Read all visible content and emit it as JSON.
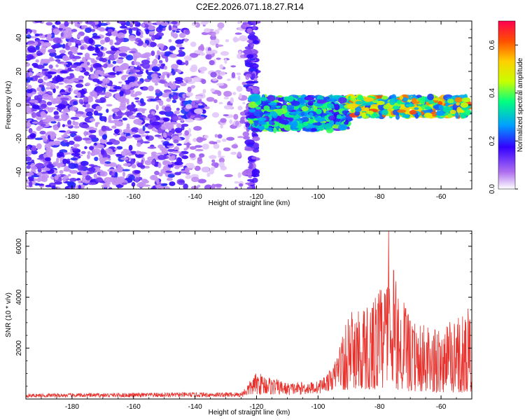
{
  "title": "C2E2.2026.071.18.27.R14",
  "chart_data": [
    {
      "type": "heatmap",
      "name": "spectrogram",
      "xlabel": "Height of straight line (km)",
      "ylabel": "Frequency (Hz)",
      "xlim": [
        -195,
        -50
      ],
      "ylim": [
        -50,
        50
      ],
      "xticks": [
        -180,
        -160,
        -140,
        -120,
        -100,
        -80,
        -60
      ],
      "yticks": [
        -40,
        -20,
        0,
        20,
        40
      ],
      "colorbar": {
        "label": "Normalized spectral amplitude",
        "range": [
          0.0,
          0.7
        ],
        "ticks": [
          0.0,
          0.2,
          0.4,
          0.6
        ],
        "tick_labels": [
          "0.0",
          "0.2",
          "0.4",
          "0.6"
        ]
      },
      "regions": [
        {
          "x_range": [
            -195,
            -143
          ],
          "y_range": [
            -50,
            50
          ],
          "level": 0.12,
          "pattern": "broadband noise"
        },
        {
          "x_range": [
            -143,
            -137
          ],
          "y_range": [
            -8,
            2
          ],
          "level": 0.16,
          "pattern": "signal band"
        },
        {
          "x_range": [
            -143,
            -123
          ],
          "y_range": [
            -50,
            50
          ],
          "level": 0.06,
          "pattern": "sparse noise"
        },
        {
          "x_range": [
            -123,
            -120
          ],
          "y_range": [
            -50,
            50
          ],
          "level": 0.14,
          "pattern": "edge"
        },
        {
          "x_range": [
            -122,
            -90
          ],
          "y_range": [
            -15,
            5
          ],
          "level": 0.3,
          "pattern": "signal band"
        },
        {
          "x_range": [
            -90,
            -51
          ],
          "y_range": [
            -7,
            5
          ],
          "level": 0.45,
          "pattern": "signal band"
        }
      ]
    },
    {
      "type": "line",
      "name": "snr",
      "xlabel": "Height of straight line (km)",
      "ylabel": "SNR (10 * v/v)",
      "xlim": [
        -195,
        -50
      ],
      "ylim": [
        0,
        6600
      ],
      "xticks": [
        -180,
        -160,
        -140,
        -120,
        -100,
        -80,
        -60
      ],
      "yticks": [
        2000,
        4000,
        6000
      ],
      "color": "#e8322d",
      "envelope": [
        {
          "x": -195,
          "base": 150,
          "amp": 150
        },
        {
          "x": -125,
          "base": 180,
          "amp": 200
        },
        {
          "x": -120,
          "base": 400,
          "amp": 900
        },
        {
          "x": -110,
          "base": 350,
          "amp": 500
        },
        {
          "x": -100,
          "base": 500,
          "amp": 500
        },
        {
          "x": -95,
          "base": 900,
          "amp": 900
        },
        {
          "x": -90,
          "base": 1500,
          "amp": 3000
        },
        {
          "x": -80,
          "base": 1500,
          "amp": 4000
        },
        {
          "x": -76,
          "base": 1500,
          "amp": 5000
        },
        {
          "x": -70,
          "base": 1200,
          "amp": 2800
        },
        {
          "x": -60,
          "base": 1000,
          "amp": 2500
        },
        {
          "x": -50,
          "base": 1000,
          "amp": 3500
        }
      ],
      "peak": {
        "x": -77,
        "y": 6600
      }
    }
  ]
}
